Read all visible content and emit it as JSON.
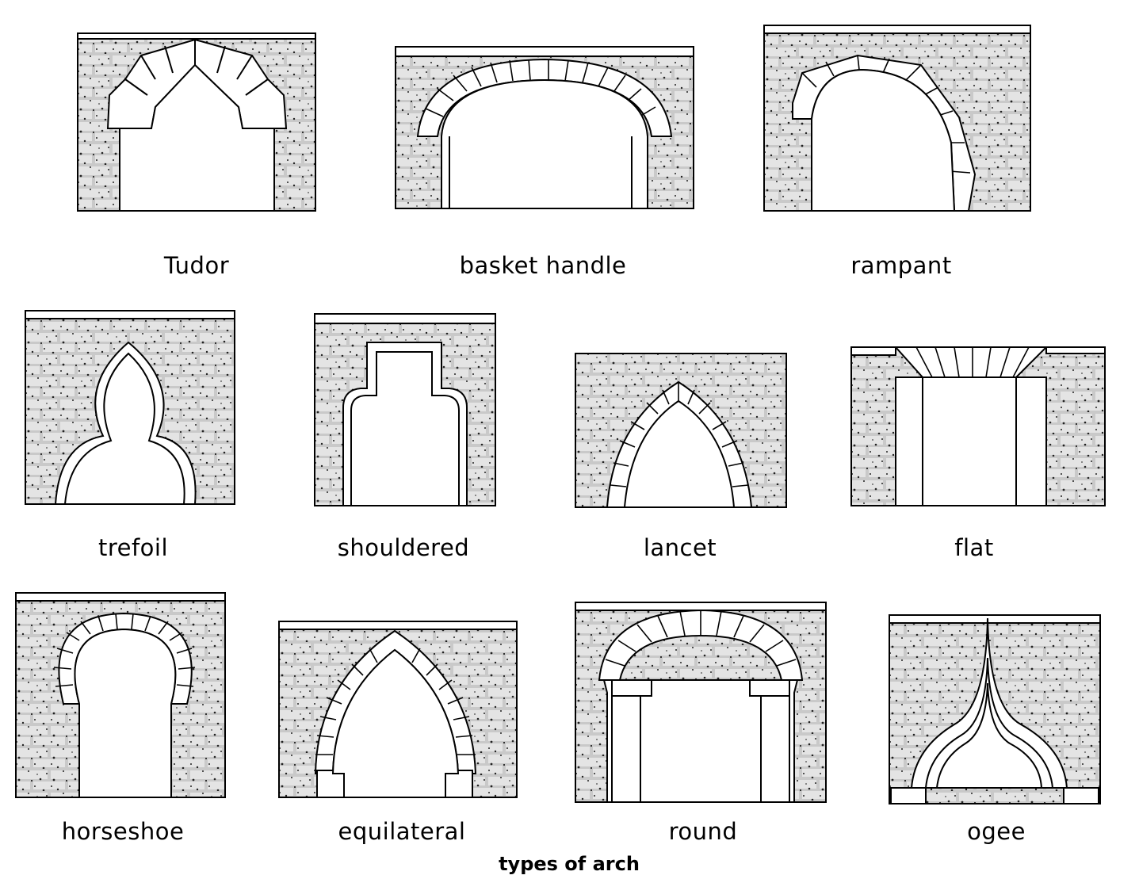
{
  "caption": "types of arch",
  "arches": [
    {
      "id": "tudor",
      "label": "Tudor"
    },
    {
      "id": "basket-handle",
      "label": "basket handle"
    },
    {
      "id": "rampant",
      "label": "rampant"
    },
    {
      "id": "trefoil",
      "label": "trefoil"
    },
    {
      "id": "shouldered",
      "label": "shouldered"
    },
    {
      "id": "lancet",
      "label": "lancet"
    },
    {
      "id": "flat",
      "label": "flat"
    },
    {
      "id": "horseshoe",
      "label": "horseshoe"
    },
    {
      "id": "equilateral",
      "label": "equilateral"
    },
    {
      "id": "round",
      "label": "round"
    },
    {
      "id": "ogee",
      "label": "ogee"
    }
  ]
}
